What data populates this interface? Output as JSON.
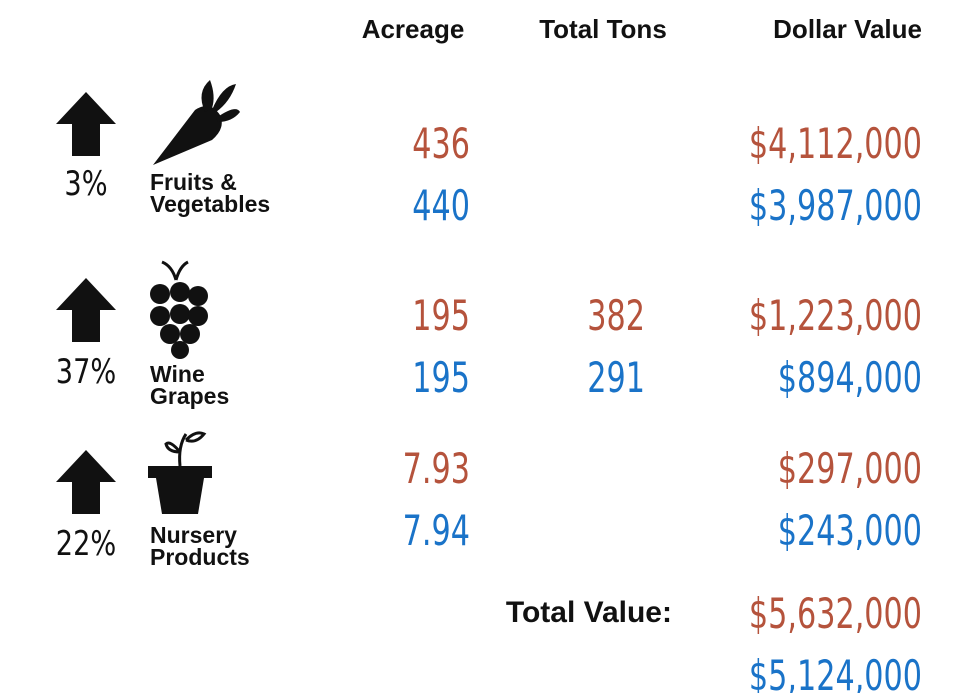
{
  "headers": [
    "Acreage",
    "Total Tons",
    "Dollar Value"
  ],
  "rows": [
    {
      "percent": "3%",
      "label": [
        "Fruits &",
        "Vegetables"
      ],
      "acreage": [
        "436",
        "440"
      ],
      "dollars": [
        "$4,112,000",
        "$3,987,000"
      ]
    },
    {
      "percent": "37%",
      "label": [
        "Wine",
        "Grapes"
      ],
      "acreage": [
        "195",
        "195"
      ],
      "tons": [
        "382",
        "291"
      ],
      "dollars": [
        "$1,223,000",
        "$894,000"
      ]
    },
    {
      "percent": "22%",
      "label": [
        "Nursery",
        "Products"
      ],
      "acreage": [
        "7.93",
        "7.94"
      ],
      "dollars": [
        "$297,000",
        "$243,000"
      ]
    }
  ],
  "total": {
    "label": "Total Value:",
    "values": [
      "$5,632,000",
      "$5,124,000"
    ]
  }
}
